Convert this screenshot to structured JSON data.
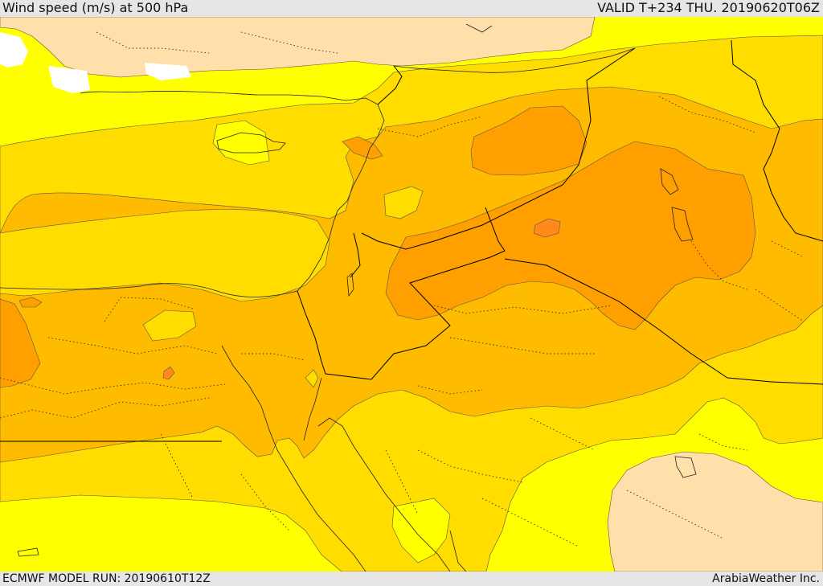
{
  "header": {
    "title": "Wind speed (m/s) at 500 hPa",
    "valid": "VALID T+234 THU. 20190620T06Z"
  },
  "footer": {
    "model_run": "ECMWF MODEL RUN: 20190610T12Z",
    "credit": "ArabiaWeather Inc."
  },
  "colors": {
    "band_lowest": "#ffdfaa",
    "band_low": "#ffff00",
    "band_mid": "#ffdd00",
    "band_high": "#ffbb00",
    "band_higher": "#ffa000",
    "band_peak": "#ff8a1a",
    "no_data": "#ffffff",
    "coast": "#222222",
    "border": "#000000"
  }
}
